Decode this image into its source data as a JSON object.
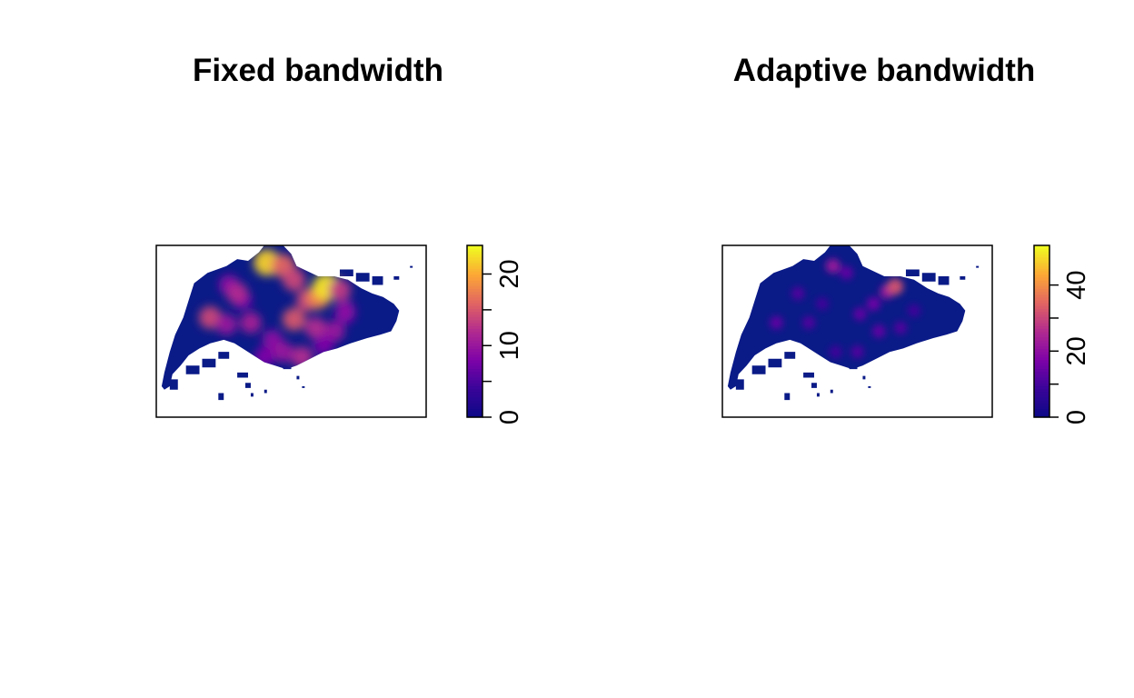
{
  "chart_data": [
    {
      "type": "heatmap",
      "title": "Fixed bandwidth",
      "colorbar": {
        "min": 0,
        "max": 24,
        "ticks": [
          0,
          10,
          20
        ],
        "minor_ticks": [
          5,
          15
        ],
        "tick_labels": [
          "0",
          "10",
          "20"
        ]
      },
      "colormap": [
        "#0d0887",
        "#3b049a",
        "#7e03a8",
        "#b12a90",
        "#e16462",
        "#fca636",
        "#f0f921"
      ],
      "background_color": "#0a1a87",
      "hotspots": [
        {
          "x": 0.27,
          "y": 0.23,
          "value": 9
        },
        {
          "x": 0.32,
          "y": 0.32,
          "value": 7
        },
        {
          "x": 0.41,
          "y": 0.1,
          "value": 22
        },
        {
          "x": 0.47,
          "y": 0.12,
          "value": 16
        },
        {
          "x": 0.51,
          "y": 0.2,
          "value": 14
        },
        {
          "x": 0.3,
          "y": 0.28,
          "value": 12
        },
        {
          "x": 0.2,
          "y": 0.42,
          "value": 14
        },
        {
          "x": 0.26,
          "y": 0.46,
          "value": 10
        },
        {
          "x": 0.35,
          "y": 0.45,
          "value": 11
        },
        {
          "x": 0.43,
          "y": 0.55,
          "value": 9
        },
        {
          "x": 0.51,
          "y": 0.43,
          "value": 15
        },
        {
          "x": 0.56,
          "y": 0.32,
          "value": 14
        },
        {
          "x": 0.6,
          "y": 0.3,
          "value": 18
        },
        {
          "x": 0.63,
          "y": 0.24,
          "value": 23
        },
        {
          "x": 0.68,
          "y": 0.26,
          "value": 13
        },
        {
          "x": 0.59,
          "y": 0.48,
          "value": 12
        },
        {
          "x": 0.66,
          "y": 0.5,
          "value": 10
        },
        {
          "x": 0.7,
          "y": 0.4,
          "value": 8
        },
        {
          "x": 0.47,
          "y": 0.62,
          "value": 10
        },
        {
          "x": 0.54,
          "y": 0.65,
          "value": 12
        },
        {
          "x": 0.4,
          "y": 0.65,
          "value": 8
        },
        {
          "x": 0.7,
          "y": 0.38,
          "value": 9
        },
        {
          "x": 0.62,
          "y": 0.58,
          "value": 8
        }
      ]
    },
    {
      "type": "heatmap",
      "title": "Adaptive bandwidth",
      "colorbar": {
        "min": 0,
        "max": 52,
        "ticks": [
          0,
          20,
          40
        ],
        "minor_ticks": [
          10,
          30
        ],
        "tick_labels": [
          "0",
          "20",
          "40"
        ]
      },
      "colormap": [
        "#0d0887",
        "#3b049a",
        "#7e03a8",
        "#b12a90",
        "#e16462",
        "#fca636",
        "#f0f921"
      ],
      "background_color": "#0a1a87",
      "hotspots": [
        {
          "x": 0.41,
          "y": 0.12,
          "value": 22
        },
        {
          "x": 0.46,
          "y": 0.16,
          "value": 14
        },
        {
          "x": 0.28,
          "y": 0.28,
          "value": 12
        },
        {
          "x": 0.2,
          "y": 0.45,
          "value": 14
        },
        {
          "x": 0.32,
          "y": 0.45,
          "value": 12
        },
        {
          "x": 0.51,
          "y": 0.4,
          "value": 14
        },
        {
          "x": 0.56,
          "y": 0.34,
          "value": 16
        },
        {
          "x": 0.61,
          "y": 0.27,
          "value": 22
        },
        {
          "x": 0.64,
          "y": 0.24,
          "value": 32
        },
        {
          "x": 0.58,
          "y": 0.5,
          "value": 14
        },
        {
          "x": 0.66,
          "y": 0.48,
          "value": 12
        },
        {
          "x": 0.5,
          "y": 0.62,
          "value": 12
        },
        {
          "x": 0.42,
          "y": 0.62,
          "value": 10
        },
        {
          "x": 0.71,
          "y": 0.38,
          "value": 10
        },
        {
          "x": 0.37,
          "y": 0.34,
          "value": 10
        }
      ]
    }
  ]
}
